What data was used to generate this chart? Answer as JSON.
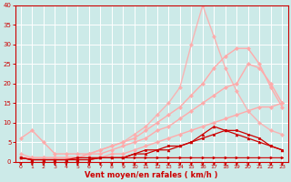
{
  "x": [
    0,
    1,
    2,
    3,
    4,
    5,
    6,
    7,
    8,
    9,
    10,
    11,
    12,
    13,
    14,
    15,
    16,
    17,
    18,
    19,
    20,
    21,
    22,
    23
  ],
  "lines": [
    {
      "y": [
        1,
        0.5,
        0.5,
        0.5,
        0.5,
        0.5,
        0.5,
        1,
        1,
        1,
        1,
        1,
        1,
        1,
        1,
        1,
        1,
        1,
        1,
        1,
        1,
        1,
        1,
        1
      ],
      "color": "#cc0000",
      "lw": 0.8,
      "marker": ">",
      "ms": 2.0,
      "alpha": 1.0,
      "zorder": 3
    },
    {
      "y": [
        1,
        0.5,
        0.5,
        0.5,
        0.5,
        0.5,
        0.5,
        1,
        1,
        1,
        2,
        2,
        3,
        3,
        4,
        5,
        7,
        9,
        8,
        7,
        6,
        5,
        4,
        3
      ],
      "color": "#cc0000",
      "lw": 0.9,
      "marker": "^",
      "ms": 2.0,
      "alpha": 1.0,
      "zorder": 3
    },
    {
      "y": [
        1,
        0.5,
        0.5,
        0.5,
        0.5,
        1,
        1,
        1,
        1,
        1,
        2,
        3,
        3,
        4,
        4,
        5,
        6,
        7,
        8,
        8,
        7,
        6,
        4,
        3
      ],
      "color": "#cc0000",
      "lw": 0.9,
      "marker": "s",
      "ms": 2.0,
      "alpha": 1.0,
      "zorder": 3
    },
    {
      "y": [
        1,
        1,
        1,
        1,
        1,
        1,
        1,
        1,
        2,
        2,
        3,
        4,
        5,
        6,
        7,
        8,
        9,
        10,
        11,
        12,
        13,
        14,
        14,
        15
      ],
      "color": "#ffaaaa",
      "lw": 1.0,
      "marker": "D",
      "ms": 2.0,
      "alpha": 1.0,
      "zorder": 2
    },
    {
      "y": [
        1,
        1,
        1,
        1,
        1,
        1,
        2,
        2,
        3,
        4,
        5,
        6,
        8,
        9,
        11,
        13,
        15,
        17,
        19,
        20,
        25,
        24,
        20,
        15
      ],
      "color": "#ffaaaa",
      "lw": 1.0,
      "marker": "D",
      "ms": 2.0,
      "alpha": 1.0,
      "zorder": 2
    },
    {
      "y": [
        6,
        8,
        5,
        2,
        2,
        2,
        2,
        3,
        4,
        5,
        6,
        8,
        10,
        12,
        14,
        17,
        20,
        24,
        27,
        29,
        29,
        25,
        19,
        14
      ],
      "color": "#ffaaaa",
      "lw": 1.0,
      "marker": "D",
      "ms": 2.0,
      "alpha": 1.0,
      "zorder": 2
    },
    {
      "y": [
        2,
        1,
        1,
        1,
        1,
        1,
        2,
        3,
        4,
        5,
        7,
        9,
        12,
        15,
        19,
        30,
        40,
        32,
        24,
        18,
        13,
        10,
        8,
        7
      ],
      "color": "#ffaaaa",
      "lw": 1.0,
      "marker": "D",
      "ms": 2.0,
      "alpha": 0.85,
      "zorder": 2
    }
  ],
  "xlabel": "Vent moyen/en rafales ( km/h )",
  "xlim": [
    -0.5,
    23.5
  ],
  "ylim": [
    0,
    40
  ],
  "yticks": [
    0,
    5,
    10,
    15,
    20,
    25,
    30,
    35,
    40
  ],
  "xticks": [
    0,
    1,
    2,
    3,
    4,
    5,
    6,
    7,
    8,
    9,
    10,
    11,
    12,
    13,
    14,
    15,
    16,
    17,
    18,
    19,
    20,
    21,
    22,
    23
  ],
  "bg_color": "#cceae8",
  "grid_color": "#aadddd",
  "tick_color": "#cc0000",
  "label_color": "#cc0000"
}
